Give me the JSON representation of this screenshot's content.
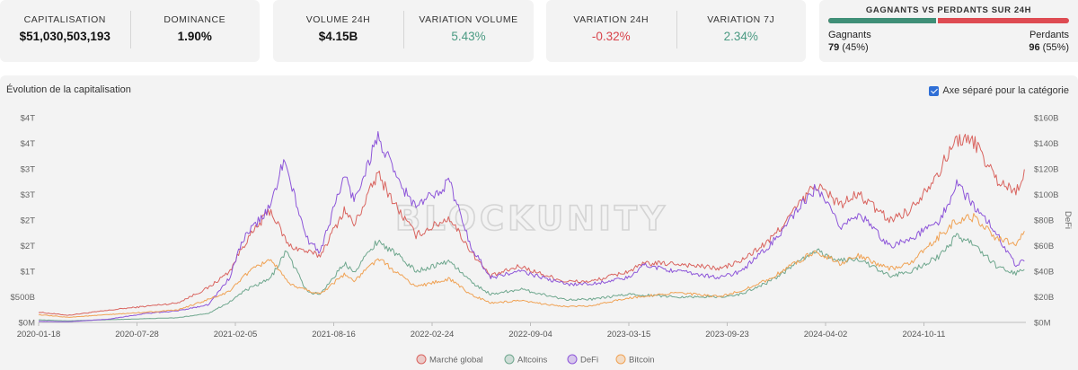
{
  "stats": {
    "capitalisation": {
      "label": "CAPITALISATION",
      "value": "$51,030,503,193"
    },
    "dominance": {
      "label": "DOMINANCE",
      "value": "1.90%"
    },
    "volume": {
      "label": "VOLUME 24H",
      "value": "$4.15B"
    },
    "variation_volume": {
      "label": "VARIATION VOLUME",
      "value": "5.43%"
    },
    "variation_24h": {
      "label": "VARIATION 24H",
      "value": "-0.32%"
    },
    "variation_7j": {
      "label": "VARIATION 7J",
      "value": "2.34%"
    }
  },
  "gainers_losers": {
    "title": "GAGNANTS VS PERDANTS SUR 24H",
    "gainers_label": "Gagnants",
    "gainers_count": "79",
    "gainers_pct": "(45%)",
    "losers_label": "Perdants",
    "losers_count": "96",
    "losers_pct": "(55%)",
    "gainers_fraction": 0.45,
    "gainers_color": "#3f8f77",
    "losers_color": "#de4b52"
  },
  "chart": {
    "title": "Évolution de la capitalisation",
    "toggle_label": "Axe séparé pour la catégorie",
    "toggle_checked": true,
    "watermark": "BLOCKUNITY"
  },
  "chart_data": {
    "type": "line",
    "x_ticks": [
      "2020-01-18",
      "2020-07-28",
      "2021-02-05",
      "2021-08-16",
      "2022-02-24",
      "2022-09-04",
      "2023-03-15",
      "2023-09-23",
      "2024-04-02",
      "2024-10-11"
    ],
    "y_left_ticks": [
      "$0M",
      "$500B",
      "$1T",
      "$2T",
      "$2T",
      "$3T",
      "$3T",
      "$4T",
      "$4T"
    ],
    "y_right_ticks": [
      "$0M",
      "$20B",
      "$40B",
      "$60B",
      "$80B",
      "$100B",
      "$120B",
      "$140B",
      "$160B"
    ],
    "y_right_label": "DeFi",
    "y_left_range": [
      0,
      4
    ],
    "y_right_range": [
      0,
      160
    ],
    "series": [
      {
        "name": "Marché global",
        "color": "#d9645f",
        "axis": "left",
        "points": [
          [
            "2020-01-18",
            0.2
          ],
          [
            "2020-03-15",
            0.14
          ],
          [
            "2020-07-01",
            0.27
          ],
          [
            "2020-10-15",
            0.38
          ],
          [
            "2020-12-15",
            0.68
          ],
          [
            "2021-01-25",
            1.0
          ],
          [
            "2021-02-20",
            1.5
          ],
          [
            "2021-04-14",
            2.2
          ],
          [
            "2021-05-20",
            1.5
          ],
          [
            "2021-07-20",
            1.3
          ],
          [
            "2021-09-06",
            2.2
          ],
          [
            "2021-09-25",
            1.9
          ],
          [
            "2021-11-10",
            2.9
          ],
          [
            "2021-12-20",
            2.2
          ],
          [
            "2022-01-24",
            1.7
          ],
          [
            "2022-03-30",
            2.05
          ],
          [
            "2022-05-10",
            1.4
          ],
          [
            "2022-06-18",
            0.9
          ],
          [
            "2022-08-15",
            1.1
          ],
          [
            "2022-09-10",
            1.0
          ],
          [
            "2022-11-10",
            0.8
          ],
          [
            "2023-01-01",
            0.8
          ],
          [
            "2023-03-15",
            1.0
          ],
          [
            "2023-04-15",
            1.15
          ],
          [
            "2023-06-15",
            1.15
          ],
          [
            "2023-09-10",
            1.05
          ],
          [
            "2023-10-20",
            1.2
          ],
          [
            "2023-12-15",
            1.6
          ],
          [
            "2024-03-14",
            2.7
          ],
          [
            "2024-05-01",
            2.3
          ],
          [
            "2024-06-05",
            2.5
          ],
          [
            "2024-08-05",
            2.0
          ],
          [
            "2024-09-15",
            2.2
          ],
          [
            "2024-11-12",
            3.0
          ],
          [
            "2024-12-15",
            3.6
          ],
          [
            "2025-01-20",
            3.5
          ],
          [
            "2025-03-01",
            2.8
          ],
          [
            "2025-04-08",
            2.55
          ],
          [
            "2025-04-25",
            2.95
          ]
        ]
      },
      {
        "name": "Altcoins",
        "color": "#6fa78e",
        "axis": "left",
        "points": [
          [
            "2020-01-18",
            0.05
          ],
          [
            "2020-03-15",
            0.03
          ],
          [
            "2020-07-01",
            0.06
          ],
          [
            "2020-10-15",
            0.09
          ],
          [
            "2020-12-15",
            0.18
          ],
          [
            "2021-01-25",
            0.4
          ],
          [
            "2021-02-20",
            0.6
          ],
          [
            "2021-04-14",
            0.85
          ],
          [
            "2021-05-15",
            1.4
          ],
          [
            "2021-06-25",
            0.6
          ],
          [
            "2021-07-20",
            0.55
          ],
          [
            "2021-09-06",
            1.15
          ],
          [
            "2021-09-25",
            1.0
          ],
          [
            "2021-11-10",
            1.6
          ],
          [
            "2021-12-20",
            1.3
          ],
          [
            "2022-01-24",
            1.0
          ],
          [
            "2022-03-30",
            1.2
          ],
          [
            "2022-05-10",
            0.8
          ],
          [
            "2022-06-18",
            0.55
          ],
          [
            "2022-08-15",
            0.65
          ],
          [
            "2022-11-10",
            0.45
          ],
          [
            "2023-01-01",
            0.45
          ],
          [
            "2023-03-15",
            0.55
          ],
          [
            "2023-06-15",
            0.5
          ],
          [
            "2023-09-10",
            0.5
          ],
          [
            "2023-10-20",
            0.55
          ],
          [
            "2023-12-15",
            0.8
          ],
          [
            "2024-03-14",
            1.4
          ],
          [
            "2024-05-01",
            1.2
          ],
          [
            "2024-06-05",
            1.25
          ],
          [
            "2024-08-05",
            0.9
          ],
          [
            "2024-09-15",
            1.0
          ],
          [
            "2024-11-12",
            1.3
          ],
          [
            "2024-12-15",
            1.7
          ],
          [
            "2025-01-20",
            1.5
          ],
          [
            "2025-03-01",
            1.1
          ],
          [
            "2025-04-08",
            0.95
          ],
          [
            "2025-04-25",
            1.05
          ]
        ]
      },
      {
        "name": "DeFi",
        "color": "#8d55d9",
        "axis": "right",
        "points": [
          [
            "2020-01-18",
            0.8
          ],
          [
            "2020-03-15",
            0.5
          ],
          [
            "2020-06-01",
            2.5
          ],
          [
            "2020-08-15",
            7
          ],
          [
            "2020-10-15",
            9
          ],
          [
            "2020-12-15",
            14
          ],
          [
            "2021-01-25",
            35
          ],
          [
            "2021-02-20",
            65
          ],
          [
            "2021-04-14",
            90
          ],
          [
            "2021-05-10",
            127
          ],
          [
            "2021-06-25",
            65
          ],
          [
            "2021-07-20",
            55
          ],
          [
            "2021-09-06",
            115
          ],
          [
            "2021-09-25",
            95
          ],
          [
            "2021-11-10",
            145
          ],
          [
            "2021-12-20",
            110
          ],
          [
            "2022-01-24",
            90
          ],
          [
            "2022-03-30",
            110
          ],
          [
            "2022-05-10",
            60
          ],
          [
            "2022-06-18",
            35
          ],
          [
            "2022-08-15",
            40
          ],
          [
            "2022-11-10",
            30
          ],
          [
            "2023-01-01",
            30
          ],
          [
            "2023-03-15",
            35
          ],
          [
            "2023-04-15",
            45
          ],
          [
            "2023-06-15",
            40
          ],
          [
            "2023-09-10",
            35
          ],
          [
            "2023-10-20",
            40
          ],
          [
            "2023-12-15",
            60
          ],
          [
            "2024-03-14",
            105
          ],
          [
            "2024-05-01",
            75
          ],
          [
            "2024-06-05",
            85
          ],
          [
            "2024-08-05",
            60
          ],
          [
            "2024-09-15",
            65
          ],
          [
            "2024-11-12",
            80
          ],
          [
            "2024-12-15",
            108
          ],
          [
            "2025-01-20",
            90
          ],
          [
            "2025-03-01",
            70
          ],
          [
            "2025-04-08",
            45
          ],
          [
            "2025-04-25",
            50
          ]
        ]
      },
      {
        "name": "Bitcoin",
        "color": "#f0a254",
        "axis": "left",
        "points": [
          [
            "2020-01-18",
            0.15
          ],
          [
            "2020-03-15",
            0.1
          ],
          [
            "2020-07-01",
            0.17
          ],
          [
            "2020-10-15",
            0.24
          ],
          [
            "2020-12-15",
            0.45
          ],
          [
            "2021-01-25",
            0.6
          ],
          [
            "2021-02-20",
            0.9
          ],
          [
            "2021-04-14",
            1.25
          ],
          [
            "2021-05-20",
            0.75
          ],
          [
            "2021-07-20",
            0.55
          ],
          [
            "2021-09-06",
            0.95
          ],
          [
            "2021-09-25",
            0.8
          ],
          [
            "2021-11-10",
            1.25
          ],
          [
            "2021-12-20",
            0.95
          ],
          [
            "2022-01-24",
            0.7
          ],
          [
            "2022-03-30",
            0.85
          ],
          [
            "2022-05-10",
            0.55
          ],
          [
            "2022-06-18",
            0.38
          ],
          [
            "2022-08-15",
            0.42
          ],
          [
            "2022-11-10",
            0.31
          ],
          [
            "2023-01-01",
            0.32
          ],
          [
            "2023-03-15",
            0.48
          ],
          [
            "2023-06-15",
            0.58
          ],
          [
            "2023-09-10",
            0.5
          ],
          [
            "2023-10-20",
            0.62
          ],
          [
            "2023-12-15",
            0.85
          ],
          [
            "2024-03-14",
            1.4
          ],
          [
            "2024-05-01",
            1.15
          ],
          [
            "2024-06-05",
            1.3
          ],
          [
            "2024-08-05",
            1.05
          ],
          [
            "2024-09-15",
            1.15
          ],
          [
            "2024-11-12",
            1.7
          ],
          [
            "2024-12-15",
            2.0
          ],
          [
            "2025-01-20",
            2.05
          ],
          [
            "2025-03-01",
            1.65
          ],
          [
            "2025-04-08",
            1.55
          ],
          [
            "2025-04-25",
            1.75
          ]
        ]
      }
    ],
    "legend_position": "bottom-center",
    "grid": false
  }
}
